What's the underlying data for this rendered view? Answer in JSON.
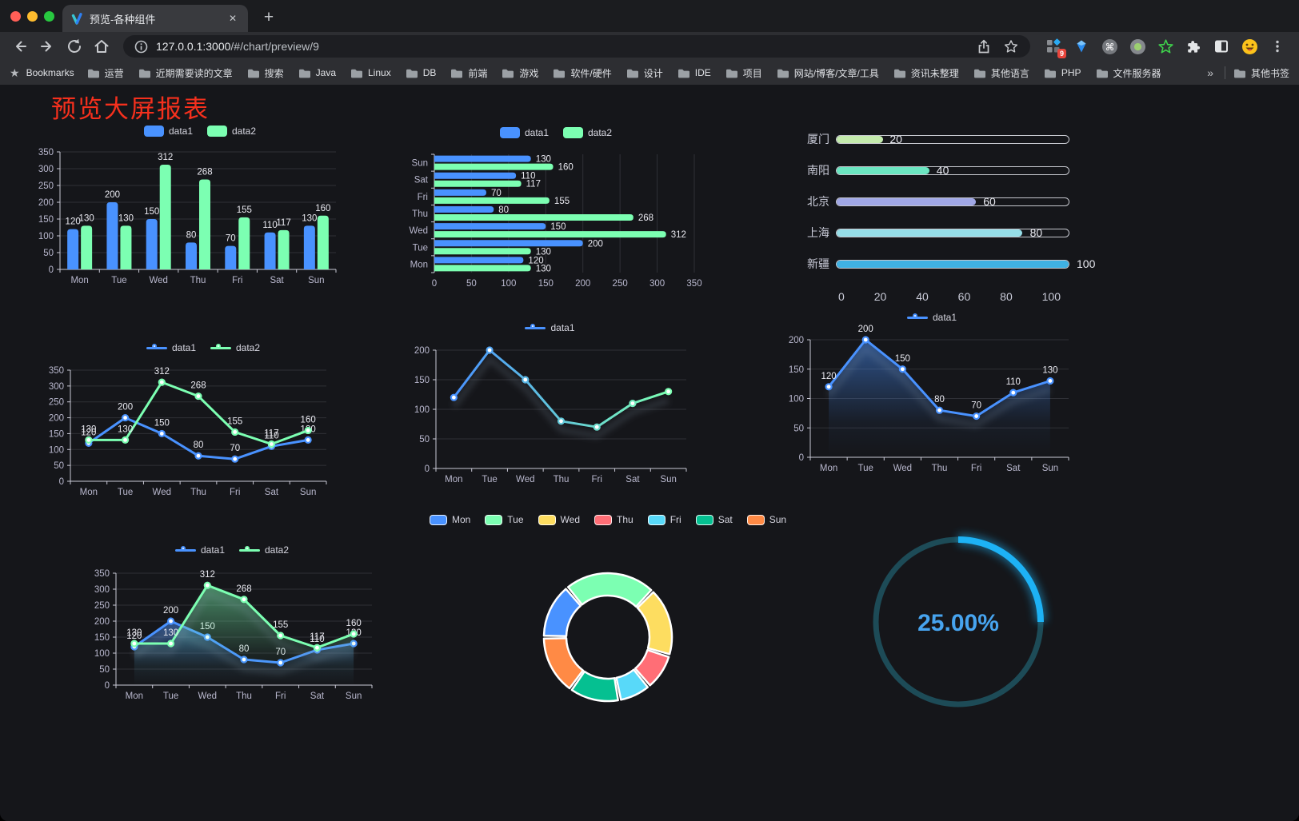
{
  "browser": {
    "traffic_lights": [
      "#ff5f57",
      "#febc2e",
      "#28c840"
    ],
    "tab_title": "预览-各种组件",
    "close_tab": "✕",
    "new_tab": "+",
    "url_host": "127.0.0.1:3000",
    "url_path": "/#/chart/preview/9",
    "extension_badge": "9",
    "bookmarks_label": "Bookmarks",
    "bookmarks": [
      "运营",
      "近期需要读的文章",
      "搜索",
      "Java",
      "Linux",
      "DB",
      "前端",
      "游戏",
      "软件/硬件",
      "设计",
      "IDE",
      "项目",
      "网站/博客/文章/工具",
      "资讯未整理",
      "其他语言",
      "PHP",
      "文件服务器"
    ],
    "bookmarks_overflow": "»",
    "other_bookmarks": "其他书签"
  },
  "page": {
    "title": "预览大屏报表",
    "title_color": "#f5301d",
    "background": "#15161a"
  },
  "chart_data": [
    {
      "id": "bar-vertical",
      "type": "bar",
      "orientation": "vertical",
      "legend": [
        "data1",
        "data2"
      ],
      "legend_position": "top",
      "categories": [
        "Mon",
        "Tue",
        "Wed",
        "Thu",
        "Fri",
        "Sat",
        "Sun"
      ],
      "series": [
        {
          "name": "data1",
          "color": "#4992ff",
          "values": [
            120,
            200,
            150,
            80,
            70,
            110,
            130
          ]
        },
        {
          "name": "data2",
          "color": "#7cffb2",
          "values": [
            130,
            130,
            312,
            268,
            155,
            117,
            160
          ]
        }
      ],
      "ylim": [
        0,
        350
      ],
      "yticks": [
        0,
        50,
        100,
        150,
        200,
        250,
        300,
        350
      ],
      "grid": true,
      "value_labels": true
    },
    {
      "id": "bar-horizontal",
      "type": "bar",
      "orientation": "horizontal",
      "legend": [
        "data1",
        "data2"
      ],
      "legend_position": "top",
      "categories": [
        "Mon",
        "Tue",
        "Wed",
        "Thu",
        "Fri",
        "Sat",
        "Sun"
      ],
      "category_axis_inverse_display": "Sun at top, Mon at bottom",
      "series": [
        {
          "name": "data1",
          "color": "#4992ff",
          "values": [
            120,
            200,
            150,
            80,
            70,
            110,
            130
          ]
        },
        {
          "name": "data2",
          "color": "#7cffb2",
          "values": [
            130,
            130,
            312,
            268,
            155,
            117,
            160
          ]
        }
      ],
      "xlim": [
        0,
        350
      ],
      "xticks": [
        0,
        50,
        100,
        150,
        200,
        250,
        300,
        350
      ],
      "grid": true,
      "value_labels": true
    },
    {
      "id": "progress",
      "type": "progress_bars",
      "items": [
        {
          "label": "厦门",
          "value": 20,
          "color": "#c4ebad"
        },
        {
          "label": "南阳",
          "value": 40,
          "color": "#6be6c1"
        },
        {
          "label": "北京",
          "value": 60,
          "color": "#a0a7e6"
        },
        {
          "label": "上海",
          "value": 80,
          "color": "#96dee8"
        },
        {
          "label": "新疆",
          "value": 100,
          "color": "#3fb1e3"
        }
      ],
      "max": 100,
      "xticks": [
        0,
        20,
        40,
        60,
        80,
        100
      ]
    },
    {
      "id": "line-two",
      "type": "line",
      "legend": [
        "data1",
        "data2"
      ],
      "legend_position": "top",
      "categories": [
        "Mon",
        "Tue",
        "Wed",
        "Thu",
        "Fri",
        "Sat",
        "Sun"
      ],
      "series": [
        {
          "name": "data1",
          "color": "#4992ff",
          "values": [
            120,
            200,
            150,
            80,
            70,
            110,
            130
          ]
        },
        {
          "name": "data2",
          "color": "#7cffb2",
          "values": [
            130,
            130,
            312,
            268,
            155,
            117,
            160
          ]
        }
      ],
      "ylim": [
        0,
        350
      ],
      "yticks": [
        0,
        50,
        100,
        150,
        200,
        250,
        300,
        350
      ],
      "grid": true,
      "value_labels": true,
      "markers": true
    },
    {
      "id": "line-gradient",
      "type": "line",
      "legend": [
        "data1"
      ],
      "legend_position": "top",
      "categories": [
        "Mon",
        "Tue",
        "Wed",
        "Thu",
        "Fri",
        "Sat",
        "Sun"
      ],
      "series": [
        {
          "name": "data1",
          "gradient": [
            "#4992ff",
            "#7cffb2"
          ],
          "values": [
            120,
            200,
            150,
            80,
            70,
            110,
            130
          ]
        }
      ],
      "ylim": [
        0,
        200
      ],
      "yticks": [
        0,
        50,
        100,
        150,
        200
      ],
      "grid": true,
      "value_labels": false,
      "markers": true,
      "shadow": true
    },
    {
      "id": "area-single",
      "type": "area",
      "legend": [
        "data1"
      ],
      "legend_position": "top",
      "categories": [
        "Mon",
        "Tue",
        "Wed",
        "Thu",
        "Fri",
        "Sat",
        "Sun"
      ],
      "series": [
        {
          "name": "data1",
          "color": "#4992ff",
          "area": true,
          "values": [
            120,
            200,
            150,
            80,
            70,
            110,
            130
          ]
        }
      ],
      "ylim": [
        0,
        200
      ],
      "yticks": [
        0,
        50,
        100,
        150,
        200
      ],
      "grid": true,
      "value_labels": true,
      "markers": true,
      "shadow": true
    },
    {
      "id": "area-two",
      "type": "area",
      "legend": [
        "data1",
        "data2"
      ],
      "legend_position": "top",
      "categories": [
        "Mon",
        "Tue",
        "Wed",
        "Thu",
        "Fri",
        "Sat",
        "Sun"
      ],
      "series": [
        {
          "name": "data1",
          "color": "#4992ff",
          "area": true,
          "values": [
            120,
            200,
            150,
            80,
            70,
            110,
            130
          ]
        },
        {
          "name": "data2",
          "color": "#7cffb2",
          "area": true,
          "values": [
            130,
            130,
            312,
            268,
            155,
            117,
            160
          ]
        }
      ],
      "ylim": [
        0,
        350
      ],
      "yticks": [
        0,
        50,
        100,
        150,
        200,
        250,
        300,
        350
      ],
      "grid": true,
      "value_labels": true,
      "markers": true,
      "shadow": true
    },
    {
      "id": "donut",
      "type": "pie",
      "labels": [
        "Mon",
        "Tue",
        "Wed",
        "Thu",
        "Fri",
        "Sat",
        "Sun"
      ],
      "values": [
        120,
        200,
        150,
        80,
        70,
        110,
        130
      ],
      "colors": [
        "#4992ff",
        "#7cffb2",
        "#fddd60",
        "#ff6e76",
        "#58d9f9",
        "#05c091",
        "#ff8a45"
      ],
      "legend_position": "top",
      "inner_radius_ratio": 0.65,
      "segment_border_color": "#ffffff"
    },
    {
      "id": "gauge",
      "type": "gauge",
      "value": 25,
      "label": "25.00%",
      "color": "#1db2f5",
      "track_color": "#1d4b57",
      "text_color": "#47a4ef"
    }
  ]
}
